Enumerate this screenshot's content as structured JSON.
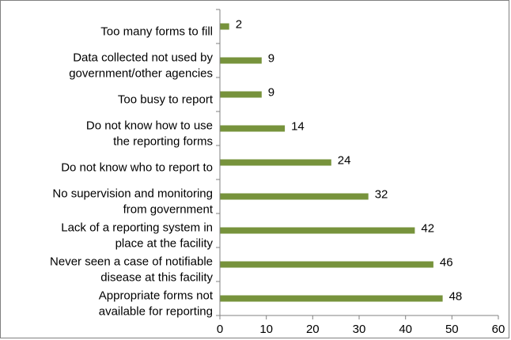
{
  "chart_data": {
    "type": "bar",
    "orientation": "horizontal",
    "categories": [
      [
        "Appropriate forms not",
        "available for reporting"
      ],
      [
        "Never seen a case of notifiable",
        "disease at this facility"
      ],
      [
        "Lack of a reporting system in",
        "place at the facility"
      ],
      [
        "No supervision and monitoring",
        "from government"
      ],
      [
        "Do not know who to report to"
      ],
      [
        "Do not know how to use",
        "the reporting forms"
      ],
      [
        "Too busy to report"
      ],
      [
        "Data collected not used by",
        "government/other agencies"
      ],
      [
        "Too many forms to fill"
      ]
    ],
    "values": [
      48,
      46,
      42,
      32,
      24,
      14,
      9,
      9,
      2
    ],
    "value_labels": [
      "48",
      "46",
      "42",
      "32",
      "24",
      "14",
      "9",
      "9",
      "2"
    ],
    "xlim": [
      0,
      60
    ],
    "x_ticks": [
      "0",
      "10",
      "20",
      "30",
      "40",
      "50",
      "60"
    ],
    "title": "",
    "xlabel": "",
    "ylabel": "",
    "grid": false,
    "legend": "none",
    "bar_color": "#77933C",
    "axis_color": "#808080"
  }
}
